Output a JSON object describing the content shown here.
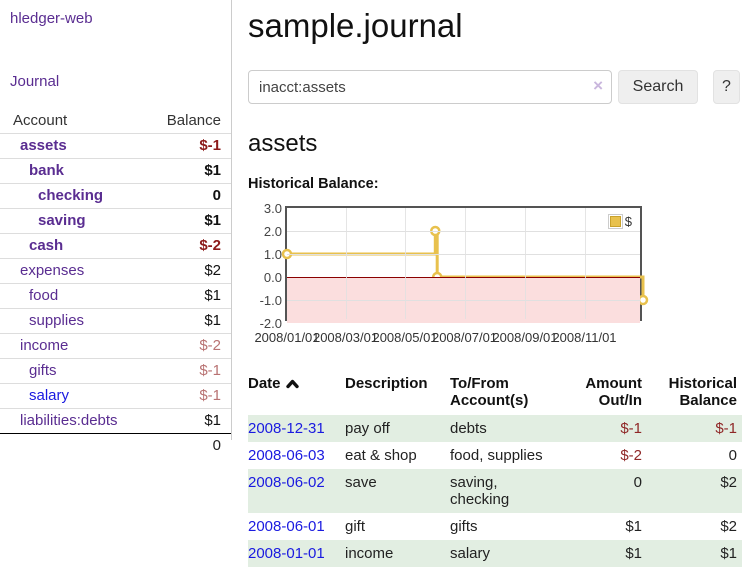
{
  "app": {
    "title": "hledger-web"
  },
  "colors": {
    "link_purple": "#5a2d91",
    "link_blue": "#1a1ae0",
    "neg_strong": "#8c1a1a",
    "neg_soft": "#b87272",
    "table_neg": "#8f2727",
    "stripe_green": "#e2eee2",
    "gold": "#e8c14d",
    "gold_dark": "#c9a22c",
    "pink": "#fbdede",
    "zero_red": "#8b0000"
  },
  "sidebar": {
    "journal_label": "Journal",
    "account_header": "Account",
    "balance_header": "Balance",
    "rows": [
      {
        "account": "assets",
        "balance": "$-1",
        "indent": 0,
        "bold": true,
        "balance_class": "neg-strong",
        "link_color": "purple"
      },
      {
        "account": "bank",
        "balance": "$1",
        "indent": 1,
        "bold": true,
        "balance_class": "plain",
        "link_color": "purple"
      },
      {
        "account": "checking",
        "balance": "0",
        "indent": 2,
        "bold": true,
        "balance_class": "plain",
        "link_color": "purple"
      },
      {
        "account": "saving",
        "balance": "$1",
        "indent": 2,
        "bold": true,
        "balance_class": "plain",
        "link_color": "purple"
      },
      {
        "account": "cash",
        "balance": "$-2",
        "indent": 1,
        "bold": true,
        "balance_class": "neg-strong",
        "link_color": "purple"
      },
      {
        "account": "expenses",
        "balance": "$2",
        "indent": 0,
        "bold": false,
        "balance_class": "plain-w",
        "link_color": "purple"
      },
      {
        "account": "food",
        "balance": "$1",
        "indent": 1,
        "bold": false,
        "balance_class": "plain-w",
        "link_color": "purple"
      },
      {
        "account": "supplies",
        "balance": "$1",
        "indent": 1,
        "bold": false,
        "balance_class": "plain-w",
        "link_color": "purple"
      },
      {
        "account": "income",
        "balance": "$-2",
        "indent": 0,
        "bold": false,
        "balance_class": "neg-soft",
        "link_color": "purple"
      },
      {
        "account": "gifts",
        "balance": "$-1",
        "indent": 1,
        "bold": false,
        "balance_class": "neg-soft",
        "link_color": "purple"
      },
      {
        "account": "salary",
        "balance": "$-1",
        "indent": 1,
        "bold": false,
        "balance_class": "neg-soft",
        "link_color": "blue"
      },
      {
        "account": "liabilities:debts",
        "balance": "$1",
        "indent": 0,
        "bold": false,
        "balance_class": "plain-w",
        "link_color": "purple"
      }
    ],
    "total": "0"
  },
  "main": {
    "title": "sample.journal",
    "search": {
      "value": "inacct:assets",
      "button_label": "Search",
      "help_label": "?"
    },
    "account_heading": "assets",
    "chart_label": "Historical Balance:"
  },
  "icons": {
    "clear": "×"
  },
  "chart_data": {
    "type": "line",
    "title": "Historical Balance:",
    "step": true,
    "legend_position": "top-right",
    "series": [
      {
        "name": "$",
        "points": [
          [
            "2008-01-01",
            1
          ],
          [
            "2008-06-01",
            2
          ],
          [
            "2008-06-03",
            0
          ],
          [
            "2008-12-31",
            -1
          ]
        ]
      }
    ],
    "xlim": [
      "2008/01/01",
      "2009/01/01"
    ],
    "ylim": [
      -2,
      3
    ],
    "x_ticks": [
      "2008/01/01",
      "2008/03/01",
      "2008/05/01",
      "2008/07/01",
      "2008/09/01",
      "2008/11/01"
    ],
    "y_ticks": [
      "3.0",
      "2.0",
      "1.0",
      "0.0",
      "-1.0",
      "-2.0"
    ],
    "negative_region_shaded": true
  },
  "register": {
    "headers": {
      "date": "Date",
      "description": "Description",
      "accounts": "To/From\nAccount(s)",
      "amount": "Amount\nOut/In",
      "balance": "Historical\nBalance"
    },
    "rows": [
      {
        "date": "2008-12-31",
        "description": "pay off",
        "accounts": "debts",
        "amount": "$-1",
        "balance": "$-1"
      },
      {
        "date": "2008-06-03",
        "description": "eat & shop",
        "accounts": "food, supplies",
        "amount": "$-2",
        "balance": "0"
      },
      {
        "date": "2008-06-02",
        "description": "save",
        "accounts": "saving,\nchecking",
        "amount": "0",
        "balance": "$2"
      },
      {
        "date": "2008-06-01",
        "description": "gift",
        "accounts": "gifts",
        "amount": "$1",
        "balance": "$2"
      },
      {
        "date": "2008-01-01",
        "description": "income",
        "accounts": "salary",
        "amount": "$1",
        "balance": "$1"
      }
    ]
  }
}
